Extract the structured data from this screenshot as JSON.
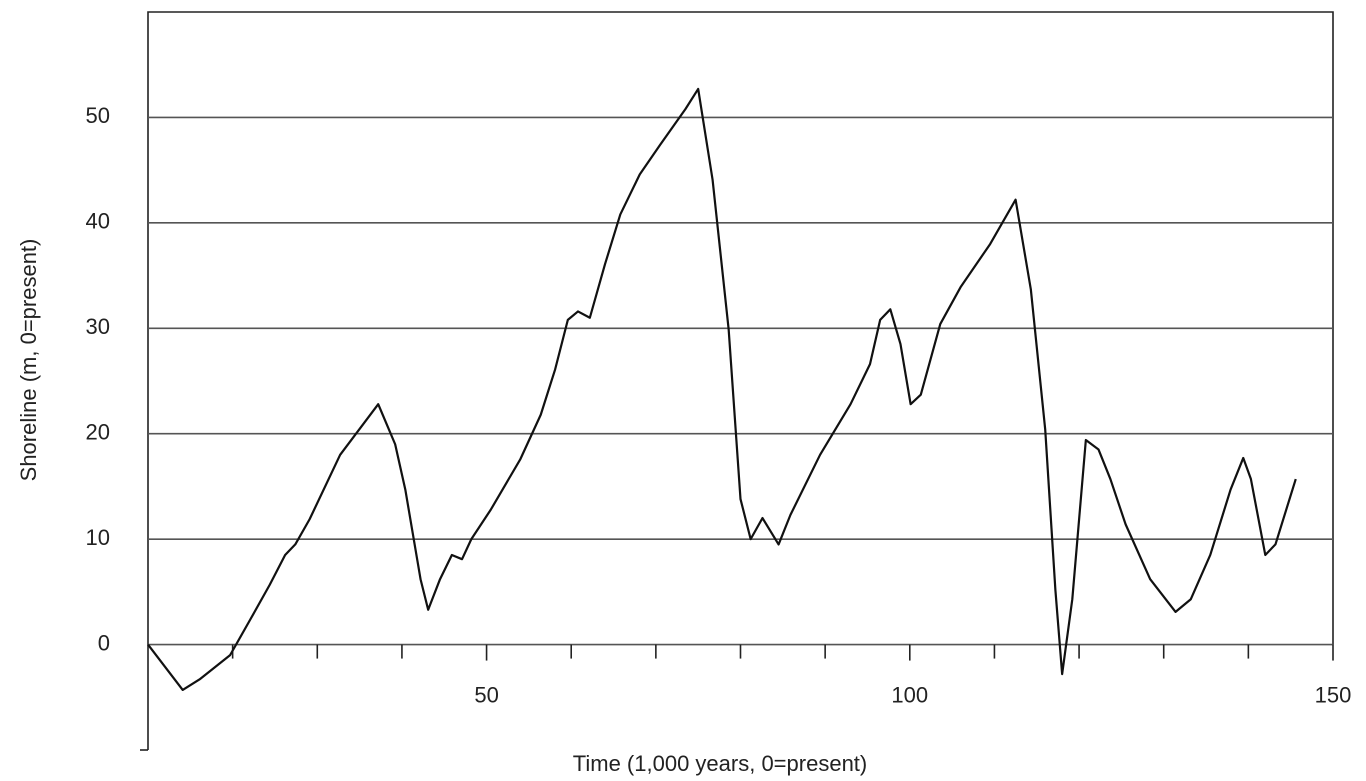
{
  "chart_data": {
    "type": "line",
    "x_label": "Time (1,000 years, 0=present)",
    "y_label": "Shoreline (m, 0=present)",
    "xlim": [
      10,
      150
    ],
    "ylim": [
      -10,
      60
    ],
    "xticks": [
      50,
      100,
      150
    ],
    "xminorticks": [
      20,
      30,
      40,
      60,
      70,
      80,
      90,
      110,
      120,
      130,
      140
    ],
    "yticks": [
      0,
      10,
      20,
      30,
      40,
      50
    ],
    "grid": true,
    "x": [
      10,
      14.1,
      16.1,
      19.7,
      22.1,
      24.4,
      26.2,
      27.4,
      29.1,
      32.7,
      37.2,
      39.2,
      40.4,
      42.2,
      43.1,
      44.5,
      45.9,
      47.1,
      48.2,
      50.5,
      54,
      56.4,
      58.1,
      59.6,
      60.8,
      62.2,
      64,
      65.8,
      68.1,
      70.5,
      73.5,
      75,
      76.7,
      78.6,
      80,
      81.2,
      82.6,
      84.5,
      85.9,
      89.4,
      93,
      95.3,
      96.5,
      97.7,
      98.9,
      100.1,
      101.3,
      103.6,
      106,
      109.5,
      112.5,
      114.3,
      116,
      117.2,
      118,
      119.2,
      120.8,
      122.3,
      123.7,
      125.5,
      128.4,
      131.4,
      133.2,
      135.5,
      137.9,
      139.4,
      140.3,
      142,
      143.2,
      145.6
    ],
    "series": [
      {
        "color": "#111111",
        "values": [
          0,
          -4.3,
          -3.3,
          -1,
          2.4,
          5.7,
          8.5,
          9.5,
          11.9,
          18,
          22.8,
          19,
          14.7,
          6.2,
          3.3,
          6.2,
          8.5,
          8.1,
          10,
          12.8,
          17.6,
          21.8,
          26.1,
          30.8,
          31.6,
          31,
          36.1,
          40.8,
          44.6,
          47.4,
          50.8,
          52.7,
          44.1,
          29.9,
          13.8,
          10,
          12,
          9.5,
          12.3,
          18,
          22.8,
          26.6,
          30.8,
          31.8,
          28.5,
          22.8,
          23.7,
          30.4,
          33.9,
          38,
          42.2,
          33.7,
          20.4,
          5.2,
          -2.8,
          4.3,
          19.4,
          18.5,
          15.7,
          11.4,
          6.2,
          3.1,
          4.3,
          8.5,
          14.7,
          17.7,
          15.7,
          8.5,
          9.5,
          15.7
        ]
      }
    ]
  }
}
